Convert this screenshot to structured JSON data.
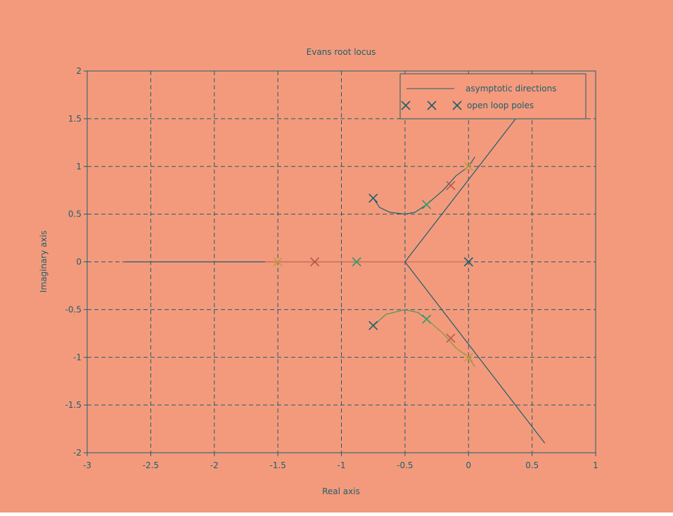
{
  "chart_data": {
    "type": "line",
    "title": "Evans root locus",
    "xlabel": "Real axis",
    "ylabel": "Imaginary axis",
    "xlim": [
      -3,
      1
    ],
    "ylim": [
      -2,
      2
    ],
    "grid": true,
    "legend_position": "top-right",
    "x_ticks": [
      "-3",
      "-2.5",
      "-2",
      "-1.5",
      "-1",
      "-0.5",
      "0",
      "0.5",
      "1"
    ],
    "y_ticks": [
      "2",
      "1.5",
      "1",
      "0.5",
      "0",
      "-0.5",
      "-1",
      "-1.5",
      "-2"
    ],
    "legend": [
      {
        "label": "asymptotic directions"
      },
      {
        "label": "open loop poles"
      }
    ],
    "asymptote_centroid": [
      -0.5,
      0
    ],
    "asymptote_lines": [
      [
        [
          -0.5,
          0
        ],
        [
          0.4,
          1.55
        ]
      ],
      [
        [
          -0.5,
          0
        ],
        [
          0.6,
          -1.9
        ]
      ]
    ],
    "real_axis_branch": [
      [
        -2.7,
        0
      ],
      [
        -0.5,
        0
      ]
    ],
    "real_axis_highlight": [
      [
        -1.6,
        0
      ],
      [
        0,
        0
      ]
    ],
    "branches": [
      {
        "color": "#1c6373",
        "points": [
          [
            -0.75,
            0.67
          ],
          [
            -0.7,
            0.57
          ],
          [
            -0.62,
            0.52
          ],
          [
            -0.5,
            0.5
          ],
          [
            -0.42,
            0.52
          ],
          [
            -0.33,
            0.6
          ]
        ]
      },
      {
        "color": "#1c6373",
        "points": [
          [
            -0.33,
            0.6
          ],
          [
            -0.2,
            0.75
          ],
          [
            -0.1,
            0.9
          ],
          [
            0,
            1.0
          ],
          [
            0.05,
            1.1
          ]
        ]
      },
      {
        "color": "#3a9a5c",
        "points": [
          [
            -0.75,
            -0.67
          ],
          [
            -0.65,
            -0.55
          ],
          [
            -0.5,
            -0.5
          ],
          [
            -0.4,
            -0.53
          ],
          [
            -0.33,
            -0.6
          ]
        ]
      },
      {
        "color": "#7a9a3a",
        "points": [
          [
            -0.33,
            -0.6
          ],
          [
            -0.2,
            -0.75
          ],
          [
            -0.1,
            -0.9
          ],
          [
            0,
            -1.0
          ],
          [
            0.05,
            -1.1
          ]
        ]
      }
    ],
    "markers": [
      {
        "x": -0.75,
        "y": 0.667,
        "color": "#1c5f6e"
      },
      {
        "x": -0.75,
        "y": -0.667,
        "color": "#1c5f6e"
      },
      {
        "x": 0,
        "y": 0,
        "color": "#1c5f6e"
      },
      {
        "x": -0.33,
        "y": 0.6,
        "color": "#2e9a6a"
      },
      {
        "x": -0.33,
        "y": -0.6,
        "color": "#2e9a6a"
      },
      {
        "x": -0.88,
        "y": 0,
        "color": "#2e9a6a"
      },
      {
        "x": -0.14,
        "y": 0.8,
        "color": "#b05a4a"
      },
      {
        "x": -0.14,
        "y": -0.8,
        "color": "#b05a4a"
      },
      {
        "x": -1.21,
        "y": 0,
        "color": "#b05a4a"
      },
      {
        "x": 0,
        "y": 1.0,
        "color": "#c89a40"
      },
      {
        "x": 0,
        "y": -1.0,
        "color": "#c89a40"
      },
      {
        "x": -1.5,
        "y": 0,
        "color": "#c89a40"
      }
    ],
    "colors": {
      "figure_bg": "#f49a7c",
      "plot_bg": "#f59a7c",
      "axis": "#1c5f6e",
      "grid": "#1c5f6e",
      "text": "#1c5f6e",
      "highlight": "#d4735a"
    }
  }
}
